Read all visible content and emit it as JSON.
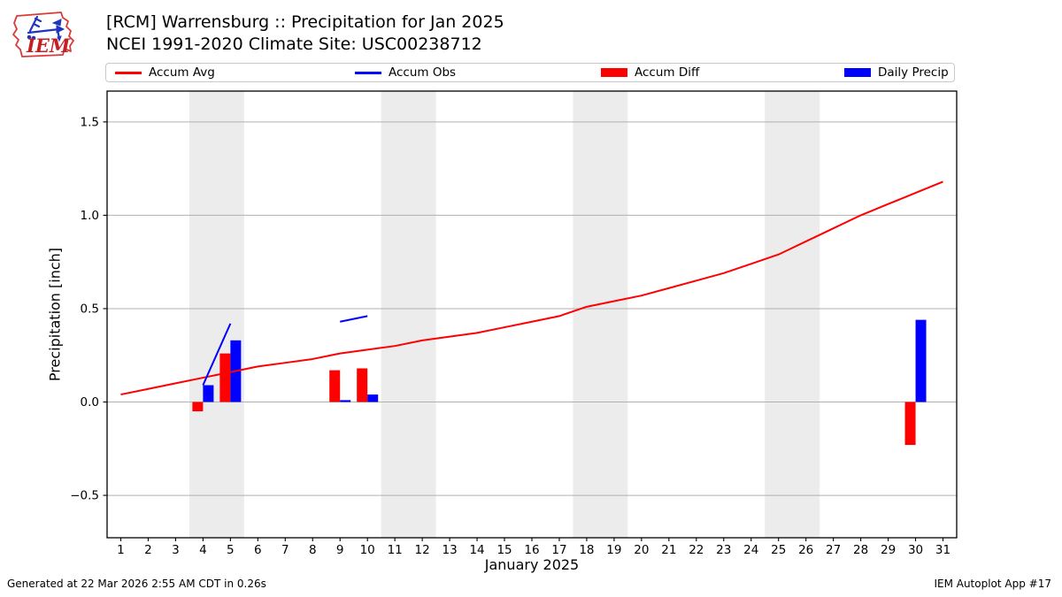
{
  "header": {
    "title_line1": "[RCM] Warrensburg :: Precipitation for Jan 2025",
    "title_line2": "NCEI 1991-2020 Climate Site: USC00238712",
    "logo_text": "IEM"
  },
  "legend": {
    "items": [
      {
        "label": "Accum Avg",
        "type": "line",
        "color": "#ff0000"
      },
      {
        "label": "Accum Obs",
        "type": "line",
        "color": "#0000ff"
      },
      {
        "label": "Accum Diff",
        "type": "rect",
        "color": "#ff0000"
      },
      {
        "label": "Daily Precip",
        "type": "rect",
        "color": "#0000ff"
      }
    ]
  },
  "footer": {
    "generated": "Generated at 22 Mar 2026 2:55 AM CDT in 0.26s",
    "app": "IEM Autoplot App #17"
  },
  "chart_data": {
    "type": "line+bar",
    "title": "[RCM] Warrensburg :: Precipitation for Jan 2025",
    "subtitle": "NCEI 1991-2020 Climate Site: USC00238712",
    "xlabel": "January 2025",
    "ylabel": "Precipitation [inch]",
    "xlim": [
      0.5,
      31.5
    ],
    "ylim": [
      -0.727,
      1.665
    ],
    "x_ticks": [
      1,
      2,
      3,
      4,
      5,
      6,
      7,
      8,
      9,
      10,
      11,
      12,
      13,
      14,
      15,
      16,
      17,
      18,
      19,
      20,
      21,
      22,
      23,
      24,
      25,
      26,
      27,
      28,
      29,
      30,
      31
    ],
    "y_ticks": [
      -0.5,
      0.0,
      0.5,
      1.0,
      1.5
    ],
    "grid": "horizontal",
    "grid_color": "#b0b0b0",
    "band_color": "#ececec",
    "weekend_bands": [
      [
        3.5,
        5.5
      ],
      [
        10.5,
        12.5
      ],
      [
        17.5,
        19.5
      ],
      [
        24.5,
        26.5
      ]
    ],
    "series": [
      {
        "name": "Accum Avg",
        "type": "line",
        "color": "#ff0000",
        "x": [
          1,
          2,
          3,
          4,
          5,
          6,
          7,
          8,
          9,
          10,
          11,
          12,
          13,
          14,
          15,
          16,
          17,
          18,
          19,
          20,
          21,
          22,
          23,
          24,
          25,
          26,
          27,
          28,
          29,
          30,
          31
        ],
        "y": [
          0.04,
          0.07,
          0.1,
          0.13,
          0.16,
          0.19,
          0.21,
          0.23,
          0.26,
          0.28,
          0.3,
          0.33,
          0.35,
          0.37,
          0.4,
          0.43,
          0.46,
          0.51,
          0.54,
          0.57,
          0.61,
          0.65,
          0.69,
          0.74,
          0.79,
          0.86,
          0.93,
          1.0,
          1.06,
          1.12,
          1.18
        ]
      },
      {
        "name": "Accum Obs",
        "type": "line",
        "color": "#0000ff",
        "segments": [
          [
            [
              4,
              0.09
            ],
            [
              5,
              0.42
            ]
          ],
          [
            [
              9,
              0.43
            ],
            [
              10,
              0.46
            ]
          ]
        ]
      },
      {
        "name": "Accum Diff",
        "type": "bar",
        "color": "#ff0000",
        "side": "left",
        "points": [
          [
            4,
            -0.05
          ],
          [
            5,
            0.26
          ],
          [
            9,
            0.17
          ],
          [
            10,
            0.18
          ],
          [
            30,
            -0.23
          ]
        ]
      },
      {
        "name": "Daily Precip",
        "type": "bar",
        "color": "#0000ff",
        "side": "right",
        "points": [
          [
            4,
            0.09
          ],
          [
            5,
            0.33
          ],
          [
            9,
            0.01
          ],
          [
            10,
            0.04
          ],
          [
            30,
            0.44
          ]
        ]
      }
    ]
  }
}
